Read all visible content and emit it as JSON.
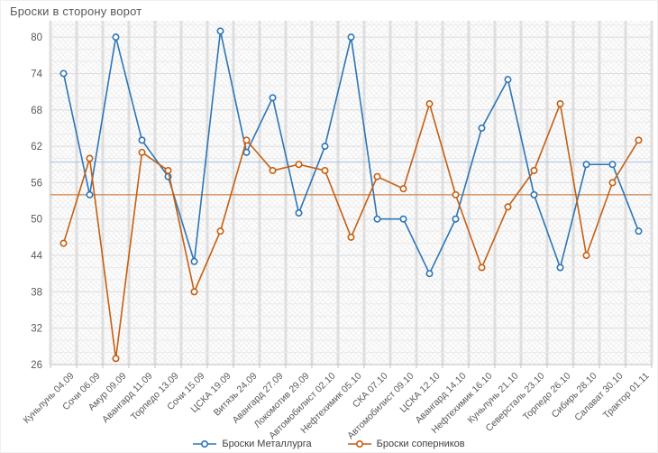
{
  "title": "Броски в сторону ворот",
  "colors": {
    "metallurg": "#2e75b6",
    "opponents": "#c55f11",
    "metallurg_avg": "#a9c5e8",
    "opponents_avg": "#c55f11",
    "grid_major": "#dcdcdc",
    "grid_minor": "#ebebeb",
    "band": "#dedede",
    "axis": "#bfbfbf",
    "tick_text": "#595959",
    "title_text": "#595959"
  },
  "chart_data": {
    "type": "line",
    "title": "Броски в сторону ворот",
    "xlabel": "",
    "ylabel": "",
    "categories": [
      "Куньлунь 04.09",
      "Сочи 06.09",
      "Амур 09.09",
      "Авангард 11.09",
      "Торпедо 13.09",
      "Сочи 15.09",
      "ЦСКА 19.09",
      "Витязь 24.09",
      "Авангард 27.09",
      "Локомотив 29.09",
      "Автомобилист 02.10",
      "Нефтехимик 05.10",
      "СКА 07.10",
      "Автомобилист 09.10",
      "ЦСКА 12.10",
      "Авангард 14.10",
      "Нефтехимик 16.10",
      "Куньлунь 21.10",
      "Северсталь 23.10",
      "Торпедо 26.10",
      "Сибирь 28.10",
      "Салават 30.10",
      "Трактор 01.11"
    ],
    "series": [
      {
        "name": "Броски Металлурга",
        "color": "#2e75b6",
        "values": [
          74,
          54,
          80,
          63,
          57,
          43,
          81,
          61,
          70,
          51,
          62,
          80,
          50,
          50,
          41,
          50,
          65,
          73,
          54,
          42,
          59,
          59,
          48
        ],
        "average": 59.4
      },
      {
        "name": "Броски соперников",
        "color": "#c55f11",
        "values": [
          46,
          60,
          27,
          61,
          58,
          38,
          48,
          63,
          58,
          59,
          58,
          47,
          57,
          55,
          69,
          54,
          42,
          52,
          58,
          69,
          44,
          56,
          63
        ],
        "average": 54.0
      }
    ],
    "y_ticks": [
      26,
      32,
      38,
      44,
      50,
      56,
      62,
      68,
      74,
      80
    ],
    "ylim": [
      26,
      82.7
    ],
    "grid": true,
    "legend_position": "bottom",
    "marker": "circle-open"
  },
  "legend": {
    "items": [
      {
        "label": "Броски Металлурга"
      },
      {
        "label": "Броски соперников"
      }
    ]
  }
}
